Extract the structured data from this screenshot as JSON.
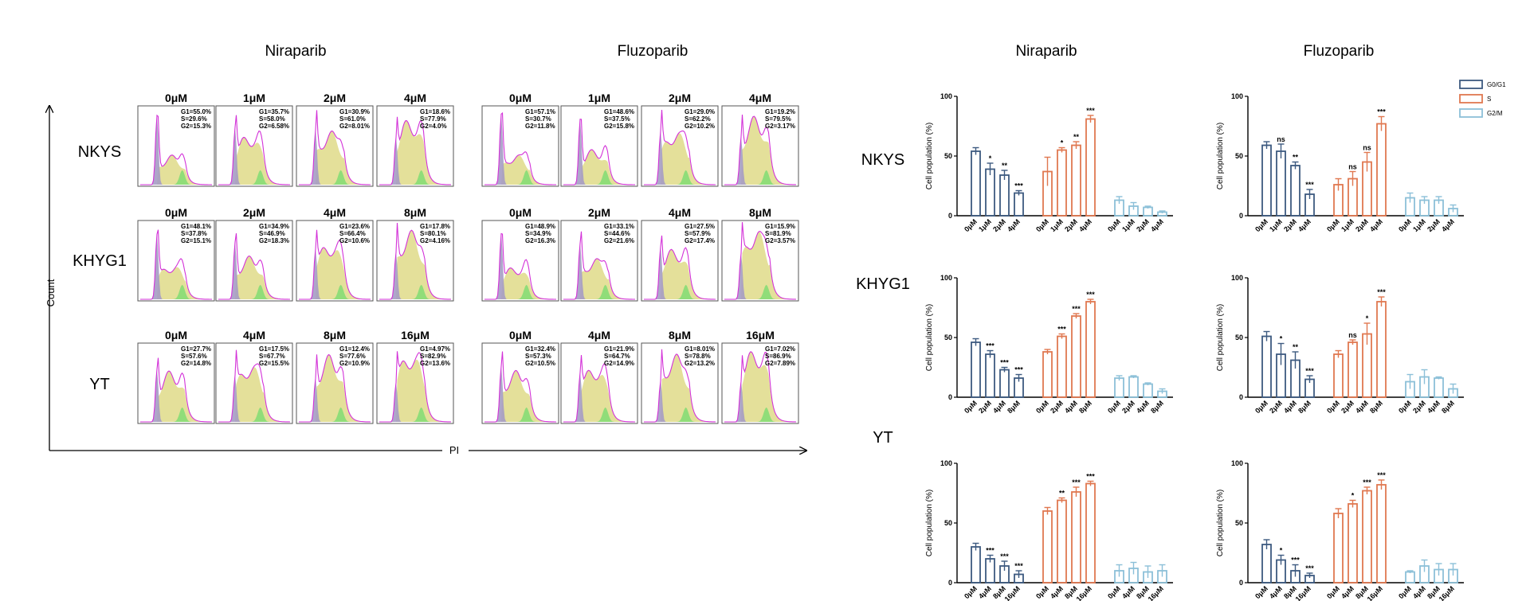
{
  "flow": {
    "drug_titles": [
      "Niraparib",
      "Fluzoparib"
    ],
    "x_axis_label": "PI",
    "y_axis_label": "Count",
    "rows": [
      {
        "cell_line": "NKYS",
        "panels": [
          {
            "dose": "0μM",
            "g1": "G1=55.0%",
            "s": "S=29.6%",
            "g2": "G2=15.3%"
          },
          {
            "dose": "1μM",
            "g1": "G1=35.7%",
            "s": "S=58.0%",
            "g2": "G2=6.58%"
          },
          {
            "dose": "2μM",
            "g1": "G1=30.9%",
            "s": "S=61.0%",
            "g2": "G2=8.01%"
          },
          {
            "dose": "4μM",
            "g1": "G1=18.6%",
            "s": "S=77.9%",
            "g2": "G2=4.0%"
          },
          {
            "dose": "0μM",
            "g1": "G1=57.1%",
            "s": "S=30.7%",
            "g2": "G2=11.8%"
          },
          {
            "dose": "1μM",
            "g1": "G1=48.6%",
            "s": "S=37.5%",
            "g2": "G2=15.8%"
          },
          {
            "dose": "2μM",
            "g1": "G1=29.0%",
            "s": "S=62.2%",
            "g2": "G2=10.2%"
          },
          {
            "dose": "4μM",
            "g1": "G1=19.2%",
            "s": "S=79.5%",
            "g2": "G2=3.17%"
          }
        ]
      },
      {
        "cell_line": "KHYG1",
        "panels": [
          {
            "dose": "0μM",
            "g1": "G1=48.1%",
            "s": "S=37.8%",
            "g2": "G2=15.1%"
          },
          {
            "dose": "2μM",
            "g1": "G1=34.9%",
            "s": "S=46.9%",
            "g2": "G2=18.3%"
          },
          {
            "dose": "4μM",
            "g1": "G1=23.6%",
            "s": "S=66.4%",
            "g2": "G2=10.6%"
          },
          {
            "dose": "8μM",
            "g1": "G1=17.8%",
            "s": "S=80.1%",
            "g2": "G2=4.16%"
          },
          {
            "dose": "0μM",
            "g1": "G1=48.9%",
            "s": "S=34.9%",
            "g2": "G2=16.3%"
          },
          {
            "dose": "2μM",
            "g1": "G1=33.1%",
            "s": "S=44.6%",
            "g2": "G2=21.6%"
          },
          {
            "dose": "4μM",
            "g1": "G1=27.5%",
            "s": "S=57.9%",
            "g2": "G2=17.4%"
          },
          {
            "dose": "8μM",
            "g1": "G1=15.9%",
            "s": "S=81.9%",
            "g2": "G2=3.57%"
          }
        ]
      },
      {
        "cell_line": "YT",
        "panels": [
          {
            "dose": "0μM",
            "g1": "G1=27.7%",
            "s": "S=57.6%",
            "g2": "G2=14.8%"
          },
          {
            "dose": "4μM",
            "g1": "G1=17.5%",
            "s": "S=67.7%",
            "g2": "G2=15.5%"
          },
          {
            "dose": "8μM",
            "g1": "G1=12.4%",
            "s": "S=77.6%",
            "g2": "G2=10.9%"
          },
          {
            "dose": "16μM",
            "g1": "G1=4.97%",
            "s": "S=82.9%",
            "g2": "G2=13.6%"
          },
          {
            "dose": "0μM",
            "g1": "G1=32.4%",
            "s": "S=57.3%",
            "g2": "G2=10.5%"
          },
          {
            "dose": "4μM",
            "g1": "G1=21.9%",
            "s": "S=64.7%",
            "g2": "G2=14.9%"
          },
          {
            "dose": "8μM",
            "g1": "G1=8.01%",
            "s": "S=78.8%",
            "g2": "G2=13.2%"
          },
          {
            "dose": "16μM",
            "g1": "G1=7.02%",
            "s": "S=86.9%",
            "g2": "G2=7.89%"
          }
        ]
      }
    ]
  },
  "chart_data": {
    "type": "bar",
    "titles": [
      "Niraparib",
      "Fluzoparib"
    ],
    "ylabel": "Cell population (%)",
    "ylim": [
      0,
      100
    ],
    "yticks": [
      0,
      50,
      100
    ],
    "error_bars": true,
    "legend": {
      "placement": "top-right",
      "entries": [
        "G0/G1",
        "S",
        "G2/M"
      ]
    },
    "colors": {
      "G0/G1": "#3d5a80",
      "S": "#e07850",
      "G2/M": "#8cc0d8"
    },
    "rows": [
      {
        "cell_line": "NKYS",
        "doses": [
          "0μM",
          "1μM",
          "2μM",
          "4μM"
        ],
        "charts": [
          {
            "drug": "Niraparib",
            "series": [
              {
                "name": "G0/G1",
                "values": [
                  54,
                  39,
                  34,
                  19
                ],
                "errors": [
                  3,
                  5,
                  4,
                  2
                ],
                "sig": [
                  "",
                  "*",
                  "**",
                  "***"
                ]
              },
              {
                "name": "S",
                "values": [
                  37,
                  55,
                  59,
                  81
                ],
                "errors": [
                  12,
                  2,
                  3,
                  3
                ],
                "sig": [
                  "",
                  "*",
                  "**",
                  "***"
                ]
              },
              {
                "name": "G2/M",
                "values": [
                  13,
                  8,
                  7,
                  3
                ],
                "errors": [
                  3,
                  3,
                  1,
                  1
                ],
                "sig": [
                  "",
                  "",
                  "",
                  ""
                ]
              }
            ]
          },
          {
            "drug": "Fluzoparib",
            "series": [
              {
                "name": "G0/G1",
                "values": [
                  59,
                  54,
                  42,
                  18
                ],
                "errors": [
                  3,
                  6,
                  3,
                  4
                ],
                "sig": [
                  "",
                  "ns",
                  "**",
                  "***"
                ]
              },
              {
                "name": "S",
                "values": [
                  26,
                  31,
                  45,
                  77
                ],
                "errors": [
                  5,
                  6,
                  8,
                  6
                ],
                "sig": [
                  "",
                  "ns",
                  "ns",
                  "***"
                ]
              },
              {
                "name": "G2/M",
                "values": [
                  15,
                  13,
                  13,
                  6
                ],
                "errors": [
                  4,
                  3,
                  3,
                  3
                ],
                "sig": [
                  "",
                  "",
                  "",
                  ""
                ]
              }
            ]
          }
        ]
      },
      {
        "cell_line": "KHYG1",
        "doses": [
          "0μM",
          "2μM",
          "4μM",
          "8μM"
        ],
        "charts": [
          {
            "drug": "Niraparib",
            "series": [
              {
                "name": "G0/G1",
                "values": [
                  46,
                  36,
                  23,
                  16
                ],
                "errors": [
                  3,
                  3,
                  2,
                  3
                ],
                "sig": [
                  "",
                  "***",
                  "***",
                  "***"
                ]
              },
              {
                "name": "S",
                "values": [
                  38,
                  51,
                  68,
                  80
                ],
                "errors": [
                  2,
                  2,
                  2,
                  2
                ],
                "sig": [
                  "",
                  "***",
                  "***",
                  "***"
                ]
              },
              {
                "name": "G2/M",
                "values": [
                  16,
                  17,
                  11,
                  5
                ],
                "errors": [
                  2,
                  1,
                  1,
                  2
                ],
                "sig": [
                  "",
                  "",
                  "",
                  ""
                ]
              }
            ]
          },
          {
            "drug": "Fluzoparib",
            "series": [
              {
                "name": "G0/G1",
                "values": [
                  51,
                  36,
                  31,
                  15
                ],
                "errors": [
                  4,
                  9,
                  7,
                  3
                ],
                "sig": [
                  "",
                  "*",
                  "**",
                  "***"
                ]
              },
              {
                "name": "S",
                "values": [
                  36,
                  46,
                  53,
                  80
                ],
                "errors": [
                  3,
                  2,
                  9,
                  4
                ],
                "sig": [
                  "",
                  "ns",
                  "*",
                  "***"
                ]
              },
              {
                "name": "G2/M",
                "values": [
                  13,
                  17,
                  16,
                  7
                ],
                "errors": [
                  6,
                  6,
                  1,
                  4
                ],
                "sig": [
                  "",
                  "",
                  "",
                  ""
                ]
              }
            ]
          }
        ]
      },
      {
        "cell_line": "YT",
        "doses": [
          "0μM",
          "4μM",
          "8μM",
          "16μM"
        ],
        "charts": [
          {
            "drug": "Niraparib",
            "series": [
              {
                "name": "G0/G1",
                "values": [
                  30,
                  20,
                  14,
                  7
                ],
                "errors": [
                  3,
                  3,
                  4,
                  3
                ],
                "sig": [
                  "",
                  "***",
                  "***",
                  "***"
                ]
              },
              {
                "name": "S",
                "values": [
                  60,
                  69,
                  76,
                  83
                ],
                "errors": [
                  3,
                  2,
                  4,
                  2
                ],
                "sig": [
                  "",
                  "**",
                  "***",
                  "***"
                ]
              },
              {
                "name": "G2/M",
                "values": [
                  10,
                  12,
                  9,
                  10
                ],
                "errors": [
                  5,
                  5,
                  5,
                  5
                ],
                "sig": [
                  "",
                  "",
                  "",
                  ""
                ]
              }
            ]
          },
          {
            "drug": "Fluzoparib",
            "series": [
              {
                "name": "G0/G1",
                "values": [
                  32,
                  19,
                  10,
                  6
                ],
                "errors": [
                  4,
                  4,
                  5,
                  2
                ],
                "sig": [
                  "",
                  "*",
                  "***",
                  "***"
                ]
              },
              {
                "name": "S",
                "values": [
                  58,
                  66,
                  77,
                  82
                ],
                "errors": [
                  4,
                  3,
                  3,
                  4
                ],
                "sig": [
                  "",
                  "*",
                  "***",
                  "***"
                ]
              },
              {
                "name": "G2/M",
                "values": [
                  9,
                  14,
                  11,
                  11
                ],
                "errors": [
                  1,
                  5,
                  5,
                  5
                ],
                "sig": [
                  "",
                  "",
                  "",
                  ""
                ]
              }
            ]
          }
        ]
      }
    ]
  }
}
